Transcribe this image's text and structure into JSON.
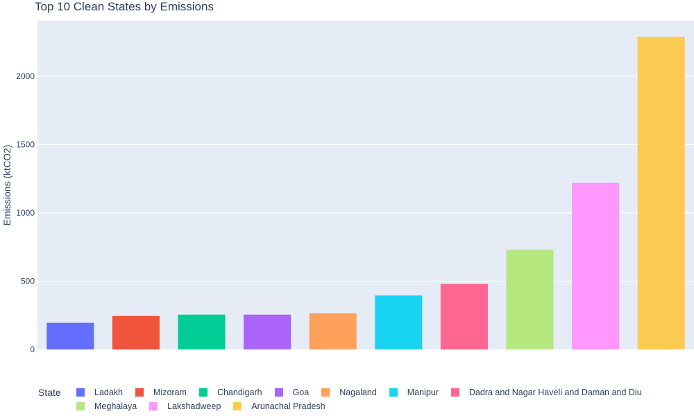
{
  "chart_data": {
    "type": "bar",
    "title": "Top 10 Clean States by Emissions",
    "ylabel": "Emissions (ktCO2)",
    "xlabel": "",
    "ylim": [
      0,
      2400
    ],
    "yticks": [
      0,
      500,
      1000,
      1500,
      2000
    ],
    "grid": true,
    "legend_title": "State",
    "legend_position": "bottom",
    "categories": [
      "Ladakh",
      "Mizoram",
      "Chandigarh",
      "Goa",
      "Nagaland",
      "Manipur",
      "Dadra and Nagar Haveli and Daman and Diu",
      "Meghalaya",
      "Lakshadweep",
      "Arunachal Pradesh"
    ],
    "values": [
      195,
      245,
      255,
      255,
      265,
      395,
      480,
      730,
      1220,
      2290
    ],
    "colors": [
      "#636efa",
      "#EF553B",
      "#00cc96",
      "#ab63fa",
      "#FFA15A",
      "#19d3f3",
      "#FF6692",
      "#B6E880",
      "#FF97FF",
      "#FECB52"
    ]
  }
}
